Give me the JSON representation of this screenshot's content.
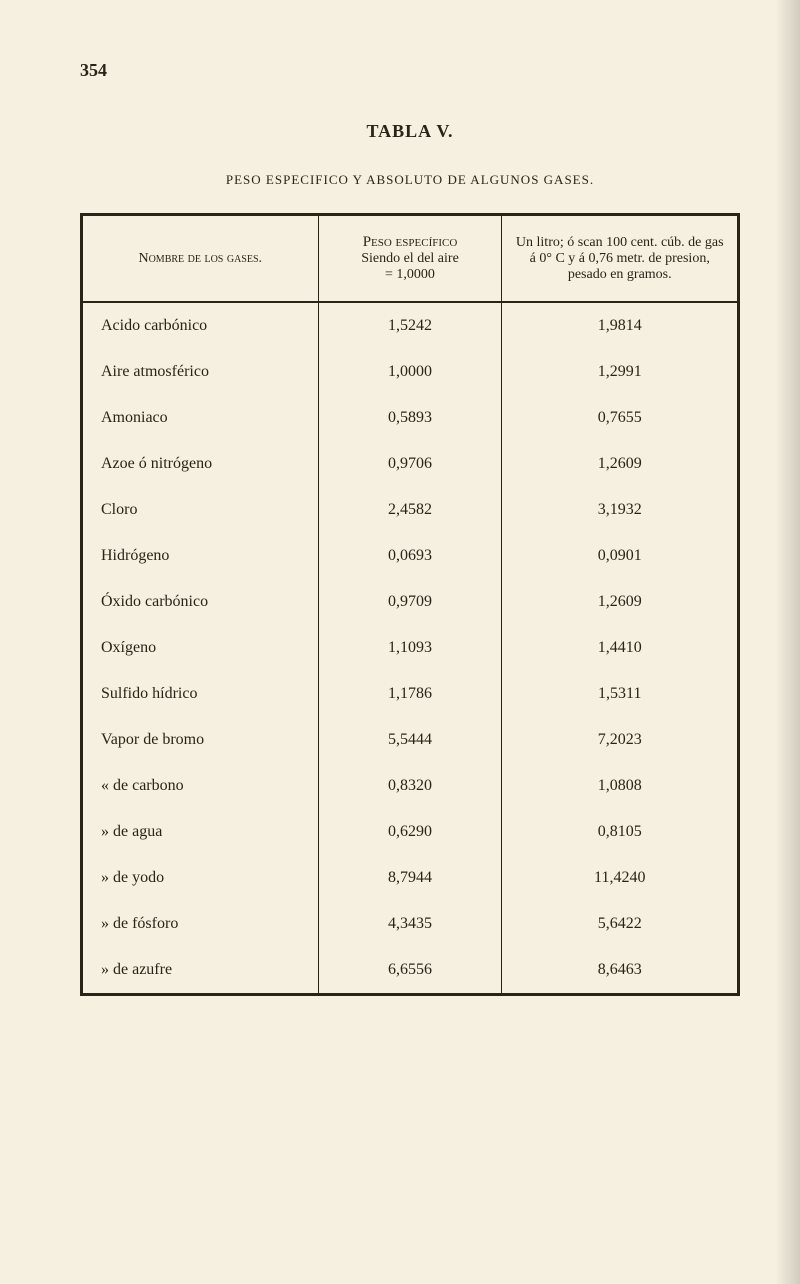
{
  "page_number": "354",
  "title": "TABLA V.",
  "subtitle": "PESO ESPECIFICO Y ABSOLUTO DE ALGUNOS GASES.",
  "headers": {
    "col1": "Nombre de los gases.",
    "col2_line1": "Peso específico",
    "col2_line2": "Siendo el del aire",
    "col2_line3": "= 1,0000",
    "col3": "Un litro; ó scan 100 cent. cúb. de gas á 0° C y á 0,76 metr. de presion, pesado en gramos."
  },
  "rows": [
    {
      "name": "Acido carbónico",
      "peso": "1,5242",
      "litro": "1,9814"
    },
    {
      "name": "Aire atmosférico",
      "peso": "1,0000",
      "litro": "1,2991"
    },
    {
      "name": "Amoniaco",
      "peso": "0,5893",
      "litro": "0,7655"
    },
    {
      "name": "Azoe ó nitrógeno",
      "peso": "0,9706",
      "litro": "1,2609"
    },
    {
      "name": "Cloro",
      "peso": "2,4582",
      "litro": "3,1932"
    },
    {
      "name": "Hidrógeno",
      "peso": "0,0693",
      "litro": "0,0901"
    },
    {
      "name": "Óxido carbónico",
      "peso": "0,9709",
      "litro": "1,2609"
    },
    {
      "name": "Oxígeno",
      "peso": "1,1093",
      "litro": "1,4410"
    },
    {
      "name": "Sulfido hídrico",
      "peso": "1,1786",
      "litro": "1,5311"
    },
    {
      "name": "Vapor de bromo",
      "peso": "5,5444",
      "litro": "7,2023"
    },
    {
      "name": "«   de carbono",
      "peso": "0,8320",
      "litro": "1,0808"
    },
    {
      "name": "»   de agua",
      "peso": "0,6290",
      "litro": "0,8105"
    },
    {
      "name": "»   de yodo",
      "peso": "8,7944",
      "litro": "11,4240"
    },
    {
      "name": "»   de fósforo",
      "peso": "4,3435",
      "litro": "5,6422"
    },
    {
      "name": "»   de azufre",
      "peso": "6,6556",
      "litro": "8,6463"
    }
  ]
}
